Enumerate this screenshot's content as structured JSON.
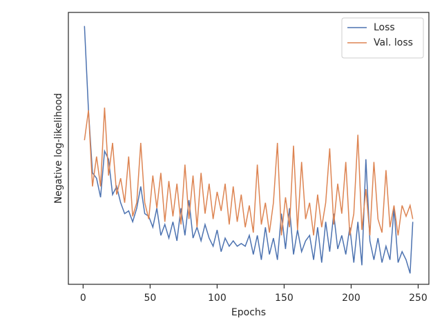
{
  "chart_data": {
    "type": "line",
    "xlabel": "Epochs",
    "ylabel": "Negative log-likelihood",
    "x": [
      1,
      4,
      7,
      10,
      13,
      16,
      19,
      22,
      25,
      28,
      31,
      34,
      37,
      40,
      43,
      46,
      49,
      52,
      55,
      58,
      61,
      64,
      67,
      70,
      73,
      76,
      79,
      82,
      85,
      88,
      91,
      94,
      97,
      100,
      103,
      106,
      109,
      112,
      115,
      118,
      121,
      124,
      127,
      130,
      133,
      136,
      139,
      142,
      145,
      148,
      151,
      154,
      157,
      160,
      163,
      166,
      169,
      172,
      175,
      178,
      181,
      184,
      187,
      190,
      193,
      196,
      199,
      202,
      205,
      208,
      211,
      214,
      217,
      220,
      223,
      226,
      229,
      232,
      235,
      238,
      241,
      244,
      246
    ],
    "series": [
      {
        "name": "Loss",
        "color": "#4c72b0",
        "values": [
          95,
          64,
          41,
          39,
          32,
          49,
          46,
          33,
          36,
          30,
          26,
          27,
          23,
          28,
          36,
          26,
          25,
          21,
          28,
          18,
          22,
          17,
          23,
          16,
          28,
          18,
          31,
          17,
          21,
          16,
          22,
          17,
          14,
          20,
          12,
          17,
          14,
          16,
          14,
          15,
          14,
          18,
          11,
          18,
          9,
          21,
          11,
          17,
          9,
          26,
          13,
          28,
          11,
          20,
          12,
          16,
          18,
          9,
          21,
          8,
          23,
          12,
          26,
          13,
          18,
          11,
          21,
          8,
          23,
          7,
          46,
          16,
          9,
          17,
          8,
          14,
          9,
          28,
          8,
          12,
          9,
          4,
          23
        ]
      },
      {
        "name": "Val. loss",
        "color": "#dd8452",
        "values": [
          53,
          64,
          36,
          47,
          36,
          65,
          40,
          52,
          33,
          39,
          30,
          47,
          25,
          30,
          52,
          30,
          24,
          40,
          28,
          41,
          23,
          38,
          25,
          37,
          22,
          44,
          24,
          40,
          21,
          41,
          26,
          37,
          24,
          34,
          27,
          37,
          22,
          36,
          23,
          33,
          21,
          29,
          19,
          44,
          22,
          30,
          19,
          30,
          52,
          18,
          32,
          21,
          51,
          20,
          45,
          24,
          30,
          18,
          33,
          21,
          30,
          50,
          22,
          37,
          26,
          45,
          18,
          26,
          55,
          20,
          35,
          18,
          45,
          24,
          19,
          42,
          21,
          29,
          18,
          29,
          25,
          29,
          24
        ]
      }
    ],
    "xlim": [
      -11,
      258
    ],
    "xticks": [
      0,
      50,
      100,
      150,
      200,
      250
    ],
    "ylim": [
      0,
      100
    ],
    "legend": "upper right"
  }
}
